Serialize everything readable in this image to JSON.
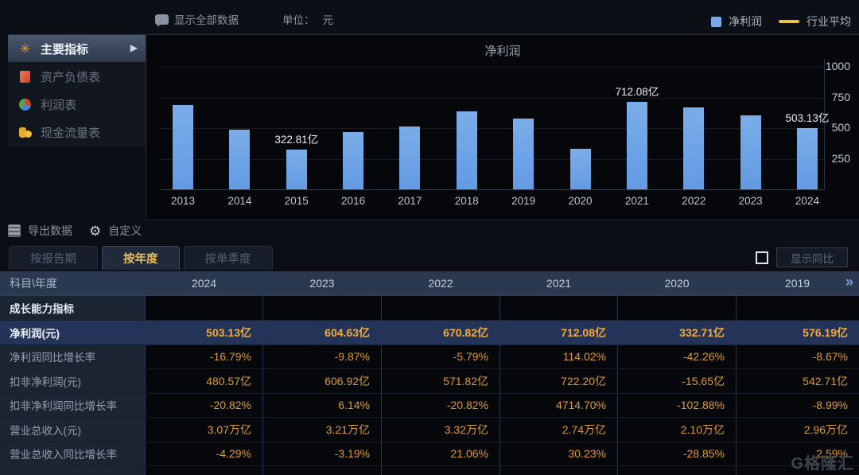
{
  "topbar": {
    "show_all_label": "显示全部数据",
    "unit_label": "单位：",
    "unit_value": "元"
  },
  "legend": {
    "bar_label": "净利润",
    "line_label": "行业平均",
    "bar_color": "#74a9ea",
    "line_color": "#e9c43e"
  },
  "sidebar": {
    "items": [
      {
        "id": "main-indicators",
        "label": "主要指标",
        "icon": "star",
        "active": true
      },
      {
        "id": "balance-sheet",
        "label": "资产负债表",
        "icon": "doc",
        "active": false
      },
      {
        "id": "income-statement",
        "label": "利润表",
        "icon": "pie",
        "active": false
      },
      {
        "id": "cash-flow-statement",
        "label": "现金流量表",
        "icon": "coins",
        "active": false
      }
    ]
  },
  "icons": {
    "star": "✳",
    "arrow_right": "▶",
    "gear": "⚙",
    "next_columns": "»"
  },
  "chart_data": {
    "type": "bar",
    "title": "净利润",
    "unit": "元",
    "legend": [
      "净利润",
      "行业平均"
    ],
    "legend_position": "top-right",
    "grid": true,
    "categories": [
      "2013",
      "2014",
      "2015",
      "2016",
      "2017",
      "2018",
      "2019",
      "2020",
      "2021",
      "2022",
      "2023",
      "2024"
    ],
    "series": [
      {
        "name": "净利润",
        "color": "#6fa7e8",
        "values": [
          690,
          486,
          322.81,
          466,
          515,
          636,
          576.19,
          332.71,
          712.08,
          670.82,
          604.63,
          503.13
        ]
      }
    ],
    "values_estimated_from_bars": [
      "2013",
      "2014",
      "2016",
      "2017",
      "2018"
    ],
    "point_labels": [
      {
        "category": "2015",
        "text": "322.81亿"
      },
      {
        "category": "2021",
        "text": "712.08亿"
      },
      {
        "category": "2024",
        "text": "503.13亿"
      }
    ],
    "yticks": [
      250,
      500,
      750,
      1000
    ],
    "ylim": [
      0,
      1000
    ],
    "value_unit": "亿",
    "xlabel": "",
    "ylabel": ""
  },
  "toolbar": {
    "export_label": "导出数据",
    "customize_label": "自定义"
  },
  "tabs": [
    {
      "id": "by-report-period",
      "label": "按报告期",
      "active": false
    },
    {
      "id": "by-year",
      "label": "按年度",
      "active": true
    },
    {
      "id": "by-single-quarter",
      "label": "按单季度",
      "active": false
    }
  ],
  "yoy": {
    "label": "显示同比",
    "checked": false
  },
  "table": {
    "corner": "科目\\年度",
    "years": [
      "2024",
      "2023",
      "2022",
      "2021",
      "2020",
      "2019"
    ],
    "section_label": "成长能力指标",
    "rows": [
      {
        "label": "净利润(元)",
        "highlighted": true,
        "values": [
          "503.13亿",
          "604.63亿",
          "670.82亿",
          "712.08亿",
          "332.71亿",
          "576.19亿"
        ]
      },
      {
        "label": "净利润同比增长率",
        "highlighted": false,
        "values": [
          "-16.79%",
          "-9.87%",
          "-5.79%",
          "114.02%",
          "-42.26%",
          "-8.67%"
        ]
      },
      {
        "label": "扣非净利润(元)",
        "highlighted": false,
        "values": [
          "480.57亿",
          "606.92亿",
          "571.82亿",
          "722.20亿",
          "-15.65亿",
          "542.71亿"
        ]
      },
      {
        "label": "扣非净利润同比增长率",
        "highlighted": false,
        "values": [
          "-20.82%",
          "6.14%",
          "-20.82%",
          "4714.70%",
          "-102.88%",
          "-8.99%"
        ]
      },
      {
        "label": "营业总收入(元)",
        "highlighted": false,
        "values": [
          "3.07万亿",
          "3.21万亿",
          "3.32万亿",
          "2.74万亿",
          "2.10万亿",
          "2.96万亿"
        ]
      },
      {
        "label": "营业总收入同比增长率",
        "highlighted": false,
        "values": [
          "-4.29%",
          "-3.19%",
          "21.06%",
          "30.23%",
          "-28.85%",
          "2.59%"
        ]
      }
    ]
  },
  "colors": {
    "accent_gold": "#e7bd5f",
    "value_orange": "#df9c33",
    "highlight_row": "#243358",
    "bar_blue": "#6fa7e8",
    "industry_avg_yellow": "#e9c43e"
  },
  "watermark": "G格隆汇"
}
